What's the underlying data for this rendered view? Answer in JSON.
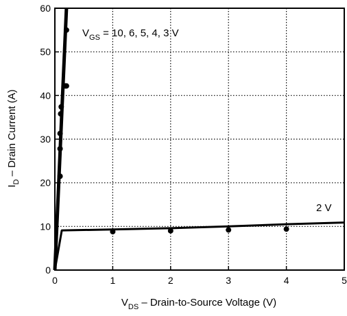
{
  "chart_data": {
    "type": "line",
    "title": "",
    "xlabel": {
      "prefix": "V",
      "subscript": "DS",
      "text": " – Drain-to-Source Voltage (V)"
    },
    "ylabel": {
      "prefix": "I",
      "subscript": "D",
      "text": " – Drain Current (A)"
    },
    "xlim": [
      0,
      5
    ],
    "ylim": [
      0,
      60
    ],
    "x_ticks": [
      0,
      1,
      2,
      3,
      4,
      5
    ],
    "y_ticks": [
      0,
      10,
      20,
      30,
      40,
      50,
      60
    ],
    "grid": true,
    "series": [
      {
        "name": "VGS = 10, 6, 5, 4, 3 V",
        "x": [
          0,
          0.06,
          0.12,
          0.18,
          0.2
        ],
        "y": [
          0,
          18,
          36,
          54,
          60
        ]
      },
      {
        "name": "2 V",
        "x": [
          0,
          0.12,
          1,
          2,
          3,
          4,
          5
        ],
        "y": [
          0,
          9.1,
          9.3,
          9.6,
          10.0,
          10.5,
          10.9
        ]
      }
    ],
    "points": [
      {
        "x": 0.09,
        "y": 21.5
      },
      {
        "x": 0.09,
        "y": 27.8
      },
      {
        "x": 0.09,
        "y": 31.3
      },
      {
        "x": 0.1,
        "y": 35.8
      },
      {
        "x": 0.11,
        "y": 37.4
      },
      {
        "x": 0.18,
        "y": 42.2
      },
      {
        "x": 0.2,
        "y": 42.2
      },
      {
        "x": 0.2,
        "y": 55.0
      },
      {
        "x": 1,
        "y": 8.8
      },
      {
        "x": 2,
        "y": 9.0
      },
      {
        "x": 3,
        "y": 9.2
      },
      {
        "x": 4,
        "y": 9.4
      }
    ],
    "annotations": {
      "vgs_label": {
        "prefix": "V",
        "subscript": "GS",
        "text": " = 10, 6, 5, 4, 3 V"
      },
      "low_label": "2 V"
    }
  }
}
